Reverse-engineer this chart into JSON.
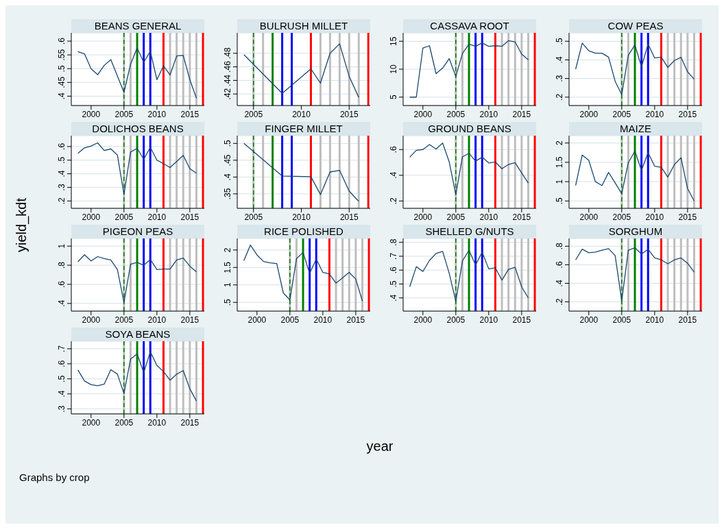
{
  "chart_data": [
    {
      "type": "line",
      "title": "BEANS GENERAL",
      "x": [
        1998,
        1999,
        2000,
        2001,
        2002,
        2003,
        2005,
        2006,
        2007,
        2008,
        2009,
        2010,
        2011,
        2012,
        2013,
        2014,
        2015,
        2016
      ],
      "values": [
        0.562,
        0.554,
        0.5,
        0.478,
        0.512,
        0.533,
        0.414,
        0.516,
        0.575,
        0.523,
        0.563,
        0.46,
        0.51,
        0.477,
        0.546,
        0.548,
        0.46,
        0.393
      ],
      "color": "#1a476f",
      "marker": "none",
      "xlim": [
        1997,
        2017.2
      ],
      "xticks": [
        2000,
        2005,
        2010,
        2015
      ],
      "ylim": [
        0.366,
        0.63
      ],
      "yticks": [
        {
          "value": 0.4,
          "label": ".4"
        },
        {
          "value": 0.45,
          "label": ".45"
        },
        {
          "value": 0.5,
          "label": ".5"
        },
        {
          "value": 0.55,
          "label": ".55"
        },
        {
          "value": 0.6,
          "label": ".6"
        }
      ],
      "grid": "y",
      "ref_lines": [
        {
          "axis": "x",
          "value": 2005,
          "color": "#008000",
          "line_style": "dashed"
        },
        {
          "axis": "x",
          "value": 2005,
          "color": "#bebebe"
        },
        {
          "axis": "x",
          "value": 2006,
          "color": "#bebebe"
        },
        {
          "axis": "x",
          "value": 2007,
          "color": "#008000"
        },
        {
          "axis": "x",
          "value": 2008,
          "color": "#0000ff"
        },
        {
          "axis": "x",
          "value": 2009,
          "color": "#0000ff"
        },
        {
          "axis": "x",
          "value": 2011,
          "color": "#ff0000"
        },
        {
          "axis": "x",
          "value": 2012,
          "color": "#bebebe"
        },
        {
          "axis": "x",
          "value": 2013,
          "color": "#bebebe"
        },
        {
          "axis": "x",
          "value": 2014,
          "color": "#bebebe"
        },
        {
          "axis": "x",
          "value": 2015,
          "color": "#bebebe"
        },
        {
          "axis": "x",
          "value": 2016,
          "color": "#bebebe"
        },
        {
          "axis": "x",
          "value": 2017,
          "color": "#ff0000"
        }
      ]
    },
    {
      "type": "line",
      "title": "BULRUSH MILLET",
      "x": [
        2004,
        2008,
        2011,
        2012,
        2013,
        2014,
        2015,
        2016
      ],
      "values": [
        0.478,
        0.421,
        0.457,
        0.436,
        0.48,
        0.494,
        0.446,
        0.415
      ],
      "color": "#1a476f",
      "marker": "none",
      "xlim": [
        2003.3,
        2017.2
      ],
      "xticks": [
        2005,
        2010,
        2015
      ],
      "ylim": [
        0.403,
        0.51
      ],
      "yticks": [
        {
          "value": 0.42,
          "label": ".42"
        },
        {
          "value": 0.44,
          "label": ".44"
        },
        {
          "value": 0.46,
          "label": ".46"
        },
        {
          "value": 0.48,
          "label": ".48"
        }
      ],
      "grid": "y",
      "ref_lines": [
        {
          "axis": "x",
          "value": 2005,
          "color": "#008000",
          "line_style": "dashed"
        },
        {
          "axis": "x",
          "value": 2005,
          "color": "#bebebe"
        },
        {
          "axis": "x",
          "value": 2006,
          "color": "#bebebe"
        },
        {
          "axis": "x",
          "value": 2007,
          "color": "#008000"
        },
        {
          "axis": "x",
          "value": 2008,
          "color": "#0000ff"
        },
        {
          "axis": "x",
          "value": 2009,
          "color": "#0000ff"
        },
        {
          "axis": "x",
          "value": 2011,
          "color": "#ff0000"
        },
        {
          "axis": "x",
          "value": 2012,
          "color": "#bebebe"
        },
        {
          "axis": "x",
          "value": 2013,
          "color": "#bebebe"
        },
        {
          "axis": "x",
          "value": 2014,
          "color": "#bebebe"
        },
        {
          "axis": "x",
          "value": 2015,
          "color": "#bebebe"
        },
        {
          "axis": "x",
          "value": 2016,
          "color": "#bebebe"
        },
        {
          "axis": "x",
          "value": 2017,
          "color": "#ff0000"
        }
      ]
    },
    {
      "type": "line",
      "title": "CASSAVA ROOT",
      "x": [
        1998,
        1999,
        2000,
        2001,
        2002,
        2003,
        2004,
        2005,
        2006,
        2007,
        2008,
        2009,
        2010,
        2011,
        2012,
        2013,
        2014,
        2015,
        2016
      ],
      "values": [
        5.0,
        5.0,
        13.8,
        14.2,
        9.2,
        10.2,
        11.9,
        8.7,
        12.8,
        14.5,
        14.1,
        14.7,
        14.1,
        14.2,
        14.1,
        15.1,
        14.9,
        12.7,
        11.7
      ],
      "color": "#1a476f",
      "marker": "none",
      "xlim": [
        1997,
        2017.2
      ],
      "xticks": [
        2000,
        2005,
        2010,
        2015
      ],
      "ylim": [
        3.5,
        16.5
      ],
      "yticks": [
        5,
        10,
        15
      ],
      "grid": "y",
      "ref_lines": [
        {
          "axis": "x",
          "value": 2005,
          "color": "#008000",
          "line_style": "dashed"
        },
        {
          "axis": "x",
          "value": 2005,
          "color": "#bebebe"
        },
        {
          "axis": "x",
          "value": 2006,
          "color": "#bebebe"
        },
        {
          "axis": "x",
          "value": 2007,
          "color": "#008000"
        },
        {
          "axis": "x",
          "value": 2008,
          "color": "#0000ff"
        },
        {
          "axis": "x",
          "value": 2009,
          "color": "#0000ff"
        },
        {
          "axis": "x",
          "value": 2011,
          "color": "#ff0000"
        },
        {
          "axis": "x",
          "value": 2012,
          "color": "#bebebe"
        },
        {
          "axis": "x",
          "value": 2013,
          "color": "#bebebe"
        },
        {
          "axis": "x",
          "value": 2014,
          "color": "#bebebe"
        },
        {
          "axis": "x",
          "value": 2015,
          "color": "#bebebe"
        },
        {
          "axis": "x",
          "value": 2016,
          "color": "#bebebe"
        },
        {
          "axis": "x",
          "value": 2017,
          "color": "#ff0000"
        }
      ]
    },
    {
      "type": "line",
      "title": "COW PEAS",
      "x": [
        1998,
        1999,
        2000,
        2001,
        2002,
        2003,
        2004,
        2005,
        2006,
        2007,
        2008,
        2009,
        2010,
        2011,
        2012,
        2013,
        2014,
        2015,
        2016
      ],
      "values": [
        0.35,
        0.49,
        0.449,
        0.436,
        0.436,
        0.415,
        0.285,
        0.214,
        0.425,
        0.48,
        0.363,
        0.485,
        0.41,
        0.415,
        0.36,
        0.397,
        0.414,
        0.336,
        0.296
      ],
      "color": "#1a476f",
      "marker": "none",
      "xlim": [
        1997,
        2017.2
      ],
      "xticks": [
        2000,
        2005,
        2010,
        2015
      ],
      "ylim": [
        0.155,
        0.545
      ],
      "yticks": [
        {
          "value": 0.2,
          "label": ".2"
        },
        {
          "value": 0.3,
          "label": ".3"
        },
        {
          "value": 0.4,
          "label": ".4"
        },
        {
          "value": 0.5,
          "label": ".5"
        }
      ],
      "grid": "y",
      "ref_lines": [
        {
          "axis": "x",
          "value": 2005,
          "color": "#008000",
          "line_style": "dashed"
        },
        {
          "axis": "x",
          "value": 2005,
          "color": "#bebebe"
        },
        {
          "axis": "x",
          "value": 2006,
          "color": "#bebebe"
        },
        {
          "axis": "x",
          "value": 2007,
          "color": "#008000"
        },
        {
          "axis": "x",
          "value": 2008,
          "color": "#0000ff"
        },
        {
          "axis": "x",
          "value": 2009,
          "color": "#0000ff"
        },
        {
          "axis": "x",
          "value": 2011,
          "color": "#ff0000"
        },
        {
          "axis": "x",
          "value": 2012,
          "color": "#bebebe"
        },
        {
          "axis": "x",
          "value": 2013,
          "color": "#bebebe"
        },
        {
          "axis": "x",
          "value": 2014,
          "color": "#bebebe"
        },
        {
          "axis": "x",
          "value": 2015,
          "color": "#bebebe"
        },
        {
          "axis": "x",
          "value": 2016,
          "color": "#bebebe"
        },
        {
          "axis": "x",
          "value": 2017,
          "color": "#ff0000"
        }
      ]
    },
    {
      "type": "line",
      "title": "DOLICHOS BEANS",
      "ylabel": "yield_kdt",
      "x": [
        1998,
        1999,
        2000,
        2001,
        2002,
        2003,
        2004,
        2005,
        2006,
        2007,
        2008,
        2009,
        2010,
        2011,
        2012,
        2013,
        2014,
        2015,
        2016
      ],
      "values": [
        0.55,
        0.59,
        0.604,
        0.627,
        0.571,
        0.583,
        0.538,
        0.248,
        0.56,
        0.587,
        0.506,
        0.594,
        0.5,
        0.475,
        0.446,
        0.49,
        0.535,
        0.437,
        0.404
      ],
      "color": "#1a476f",
      "marker": "none",
      "xlim": [
        1997,
        2017.2
      ],
      "xticks": [
        2000,
        2005,
        2010,
        2015
      ],
      "ylim": [
        0.146,
        0.68
      ],
      "yticks": [
        {
          "value": 0.2,
          "label": ".2"
        },
        {
          "value": 0.3,
          "label": ".3"
        },
        {
          "value": 0.4,
          "label": ".4"
        },
        {
          "value": 0.5,
          "label": ".5"
        },
        {
          "value": 0.6,
          "label": ".6"
        }
      ],
      "grid": "y",
      "ref_lines": [
        {
          "axis": "x",
          "value": 2005,
          "color": "#008000",
          "line_style": "dashed"
        },
        {
          "axis": "x",
          "value": 2005,
          "color": "#bebebe"
        },
        {
          "axis": "x",
          "value": 2006,
          "color": "#bebebe"
        },
        {
          "axis": "x",
          "value": 2007,
          "color": "#008000"
        },
        {
          "axis": "x",
          "value": 2008,
          "color": "#0000ff"
        },
        {
          "axis": "x",
          "value": 2009,
          "color": "#0000ff"
        },
        {
          "axis": "x",
          "value": 2011,
          "color": "#ff0000"
        },
        {
          "axis": "x",
          "value": 2012,
          "color": "#bebebe"
        },
        {
          "axis": "x",
          "value": 2013,
          "color": "#bebebe"
        },
        {
          "axis": "x",
          "value": 2014,
          "color": "#bebebe"
        },
        {
          "axis": "x",
          "value": 2015,
          "color": "#bebebe"
        },
        {
          "axis": "x",
          "value": 2016,
          "color": "#bebebe"
        },
        {
          "axis": "x",
          "value": 2017,
          "color": "#ff0000"
        }
      ]
    },
    {
      "type": "line",
      "title": "FINGER MILLET",
      "x": [
        2004,
        2008,
        2011,
        2012,
        2013,
        2014,
        2015,
        2016
      ],
      "values": [
        0.5,
        0.403,
        0.401,
        0.348,
        0.415,
        0.42,
        0.358,
        0.328
      ],
      "color": "#1a476f",
      "marker": "none",
      "xlim": [
        2003.3,
        2017.2
      ],
      "xticks": [
        2005,
        2010,
        2015
      ],
      "ylim": [
        0.307,
        0.523
      ],
      "yticks": [
        {
          "value": 0.35,
          "label": ".35"
        },
        {
          "value": 0.4,
          "label": ".4"
        },
        {
          "value": 0.45,
          "label": ".45"
        },
        {
          "value": 0.5,
          "label": ".5"
        }
      ],
      "grid": "y",
      "ref_lines": [
        {
          "axis": "x",
          "value": 2005,
          "color": "#008000",
          "line_style": "dashed"
        },
        {
          "axis": "x",
          "value": 2005,
          "color": "#bebebe"
        },
        {
          "axis": "x",
          "value": 2006,
          "color": "#bebebe"
        },
        {
          "axis": "x",
          "value": 2007,
          "color": "#008000"
        },
        {
          "axis": "x",
          "value": 2008,
          "color": "#0000ff"
        },
        {
          "axis": "x",
          "value": 2009,
          "color": "#0000ff"
        },
        {
          "axis": "x",
          "value": 2011,
          "color": "#ff0000"
        },
        {
          "axis": "x",
          "value": 2012,
          "color": "#bebebe"
        },
        {
          "axis": "x",
          "value": 2013,
          "color": "#bebebe"
        },
        {
          "axis": "x",
          "value": 2014,
          "color": "#bebebe"
        },
        {
          "axis": "x",
          "value": 2015,
          "color": "#bebebe"
        },
        {
          "axis": "x",
          "value": 2016,
          "color": "#bebebe"
        },
        {
          "axis": "x",
          "value": 2017,
          "color": "#ff0000"
        }
      ]
    },
    {
      "type": "line",
      "title": "GROUND BEANS",
      "x": [
        1998,
        1999,
        2000,
        2001,
        2002,
        2003,
        2004,
        2005,
        2006,
        2007,
        2008,
        2009,
        2010,
        2011,
        2012,
        2013,
        2014,
        2015,
        2016
      ],
      "values": [
        0.541,
        0.594,
        0.6,
        0.639,
        0.604,
        0.651,
        0.504,
        0.247,
        0.543,
        0.571,
        0.51,
        0.541,
        0.496,
        0.504,
        0.451,
        0.484,
        0.498,
        0.418,
        0.339
      ],
      "color": "#1a476f",
      "marker": "none",
      "xlim": [
        1997,
        2017.2
      ],
      "xticks": [
        2000,
        2005,
        2010,
        2015
      ],
      "ylim": [
        0.143,
        0.708
      ],
      "yticks": [
        {
          "value": 0.2,
          "label": ".2"
        },
        {
          "value": 0.4,
          "label": ".4"
        },
        {
          "value": 0.6,
          "label": ".6"
        }
      ],
      "grid": "y",
      "ref_lines": [
        {
          "axis": "x",
          "value": 2005,
          "color": "#008000",
          "line_style": "dashed"
        },
        {
          "axis": "x",
          "value": 2005,
          "color": "#bebebe"
        },
        {
          "axis": "x",
          "value": 2006,
          "color": "#bebebe"
        },
        {
          "axis": "x",
          "value": 2007,
          "color": "#008000"
        },
        {
          "axis": "x",
          "value": 2008,
          "color": "#0000ff"
        },
        {
          "axis": "x",
          "value": 2009,
          "color": "#0000ff"
        },
        {
          "axis": "x",
          "value": 2011,
          "color": "#ff0000"
        },
        {
          "axis": "x",
          "value": 2012,
          "color": "#bebebe"
        },
        {
          "axis": "x",
          "value": 2013,
          "color": "#bebebe"
        },
        {
          "axis": "x",
          "value": 2014,
          "color": "#bebebe"
        },
        {
          "axis": "x",
          "value": 2015,
          "color": "#bebebe"
        },
        {
          "axis": "x",
          "value": 2016,
          "color": "#bebebe"
        },
        {
          "axis": "x",
          "value": 2017,
          "color": "#ff0000"
        }
      ]
    },
    {
      "type": "line",
      "title": "MAIZE",
      "x": [
        1998,
        1999,
        2000,
        2001,
        2002,
        2003,
        2004,
        2005,
        2006,
        2007,
        2008,
        2009,
        2010,
        2011,
        2012,
        2013,
        2014,
        2015,
        2016
      ],
      "values": [
        0.9,
        1.69,
        1.55,
        1.0,
        0.9,
        1.24,
        0.97,
        0.69,
        1.49,
        1.79,
        1.29,
        1.75,
        1.4,
        1.37,
        1.12,
        1.44,
        1.62,
        0.82,
        0.5
      ],
      "color": "#1a476f",
      "marker": "none",
      "xlim": [
        1997,
        2017.2
      ],
      "xticks": [
        2000,
        2005,
        2010,
        2015
      ],
      "ylim": [
        0.31,
        2.19
      ],
      "yticks": [
        {
          "value": 0.5,
          "label": ".5"
        },
        1,
        1.5,
        2
      ],
      "grid": "y",
      "ref_lines": [
        {
          "axis": "x",
          "value": 2005,
          "color": "#008000",
          "line_style": "dashed"
        },
        {
          "axis": "x",
          "value": 2005,
          "color": "#bebebe"
        },
        {
          "axis": "x",
          "value": 2006,
          "color": "#bebebe"
        },
        {
          "axis": "x",
          "value": 2007,
          "color": "#008000"
        },
        {
          "axis": "x",
          "value": 2008,
          "color": "#0000ff"
        },
        {
          "axis": "x",
          "value": 2009,
          "color": "#0000ff"
        },
        {
          "axis": "x",
          "value": 2011,
          "color": "#ff0000"
        },
        {
          "axis": "x",
          "value": 2012,
          "color": "#bebebe"
        },
        {
          "axis": "x",
          "value": 2013,
          "color": "#bebebe"
        },
        {
          "axis": "x",
          "value": 2014,
          "color": "#bebebe"
        },
        {
          "axis": "x",
          "value": 2015,
          "color": "#bebebe"
        },
        {
          "axis": "x",
          "value": 2016,
          "color": "#bebebe"
        },
        {
          "axis": "x",
          "value": 2017,
          "color": "#ff0000"
        }
      ]
    },
    {
      "type": "line",
      "title": "PIGEON PEAS",
      "x": [
        1998,
        1999,
        2000,
        2001,
        2002,
        2003,
        2004,
        2005,
        2006,
        2007,
        2008,
        2009,
        2010,
        2011,
        2012,
        2013,
        2014,
        2015,
        2016
      ],
      "values": [
        0.836,
        0.91,
        0.845,
        0.89,
        0.87,
        0.855,
        0.755,
        0.41,
        0.81,
        0.83,
        0.8,
        0.86,
        0.755,
        0.76,
        0.76,
        0.855,
        0.875,
        0.79,
        0.73
      ],
      "color": "#1a476f",
      "marker": "none",
      "xlim": [
        1997,
        2017.2
      ],
      "xticks": [
        2000,
        2005,
        2010,
        2015
      ],
      "ylim": [
        0.32,
        1.08
      ],
      "yticks": [
        {
          "value": 0.4,
          "label": ".4"
        },
        {
          "value": 0.6,
          "label": ".6"
        },
        {
          "value": 0.8,
          "label": ".8"
        },
        1
      ],
      "grid": "y",
      "ref_lines": [
        {
          "axis": "x",
          "value": 2005,
          "color": "#008000",
          "line_style": "dashed"
        },
        {
          "axis": "x",
          "value": 2005,
          "color": "#bebebe"
        },
        {
          "axis": "x",
          "value": 2006,
          "color": "#bebebe"
        },
        {
          "axis": "x",
          "value": 2007,
          "color": "#008000"
        },
        {
          "axis": "x",
          "value": 2008,
          "color": "#0000ff"
        },
        {
          "axis": "x",
          "value": 2009,
          "color": "#0000ff"
        },
        {
          "axis": "x",
          "value": 2011,
          "color": "#ff0000"
        },
        {
          "axis": "x",
          "value": 2012,
          "color": "#bebebe"
        },
        {
          "axis": "x",
          "value": 2013,
          "color": "#bebebe"
        },
        {
          "axis": "x",
          "value": 2014,
          "color": "#bebebe"
        },
        {
          "axis": "x",
          "value": 2015,
          "color": "#bebebe"
        },
        {
          "axis": "x",
          "value": 2016,
          "color": "#bebebe"
        },
        {
          "axis": "x",
          "value": 2017,
          "color": "#ff0000"
        }
      ]
    },
    {
      "type": "line",
      "title": "RICE POLISHED",
      "xlabel": "year",
      "x": [
        1998,
        1999,
        2000,
        2001,
        2002,
        2003,
        2004,
        2005,
        2006,
        2007,
        2008,
        2009,
        2010,
        2011,
        2012,
        2013,
        2014,
        2015,
        2016
      ],
      "values": [
        1.69,
        2.14,
        1.86,
        1.67,
        1.63,
        1.61,
        0.77,
        0.57,
        1.75,
        1.93,
        1.33,
        1.74,
        1.36,
        1.31,
        1.05,
        1.2,
        1.36,
        1.17,
        0.54
      ],
      "color": "#1a476f",
      "marker": "none",
      "xlim": [
        1997,
        2017.2
      ],
      "xticks": [
        2000,
        2005,
        2010,
        2015
      ],
      "ylim": [
        0.25,
        2.33
      ],
      "yticks": [
        {
          "value": 0.5,
          "label": ".5"
        },
        1,
        1.5,
        2
      ],
      "grid": "y",
      "ref_lines": [
        {
          "axis": "x",
          "value": 2005,
          "color": "#008000",
          "line_style": "dashed"
        },
        {
          "axis": "x",
          "value": 2005,
          "color": "#bebebe"
        },
        {
          "axis": "x",
          "value": 2006,
          "color": "#bebebe"
        },
        {
          "axis": "x",
          "value": 2007,
          "color": "#008000"
        },
        {
          "axis": "x",
          "value": 2008,
          "color": "#0000ff"
        },
        {
          "axis": "x",
          "value": 2009,
          "color": "#0000ff"
        },
        {
          "axis": "x",
          "value": 2011,
          "color": "#ff0000"
        },
        {
          "axis": "x",
          "value": 2012,
          "color": "#bebebe"
        },
        {
          "axis": "x",
          "value": 2013,
          "color": "#bebebe"
        },
        {
          "axis": "x",
          "value": 2014,
          "color": "#bebebe"
        },
        {
          "axis": "x",
          "value": 2015,
          "color": "#bebebe"
        },
        {
          "axis": "x",
          "value": 2016,
          "color": "#bebebe"
        },
        {
          "axis": "x",
          "value": 2017,
          "color": "#ff0000"
        }
      ]
    },
    {
      "type": "line",
      "title": "SHELLED G/NUTS",
      "x": [
        1998,
        1999,
        2000,
        2001,
        2002,
        2003,
        2004,
        2005,
        2006,
        2007,
        2008,
        2009,
        2010,
        2011,
        2012,
        2013,
        2014,
        2015,
        2016
      ],
      "values": [
        0.48,
        0.625,
        0.59,
        0.67,
        0.72,
        0.735,
        0.577,
        0.375,
        0.665,
        0.743,
        0.637,
        0.729,
        0.609,
        0.616,
        0.528,
        0.605,
        0.62,
        0.48,
        0.4
      ],
      "color": "#1a476f",
      "marker": "none",
      "xlim": [
        1997,
        2017.2
      ],
      "xticks": [
        2000,
        2005,
        2010,
        2015
      ],
      "ylim": [
        0.305,
        0.828
      ],
      "yticks": [
        {
          "value": 0.4,
          "label": ".4"
        },
        {
          "value": 0.5,
          "label": ".5"
        },
        {
          "value": 0.6,
          "label": ".6"
        },
        {
          "value": 0.7,
          "label": ".7"
        },
        {
          "value": 0.8,
          "label": ".8"
        }
      ],
      "grid": "y",
      "ref_lines": [
        {
          "axis": "x",
          "value": 2005,
          "color": "#008000",
          "line_style": "dashed"
        },
        {
          "axis": "x",
          "value": 2005,
          "color": "#bebebe"
        },
        {
          "axis": "x",
          "value": 2006,
          "color": "#bebebe"
        },
        {
          "axis": "x",
          "value": 2007,
          "color": "#008000"
        },
        {
          "axis": "x",
          "value": 2008,
          "color": "#0000ff"
        },
        {
          "axis": "x",
          "value": 2009,
          "color": "#0000ff"
        },
        {
          "axis": "x",
          "value": 2011,
          "color": "#ff0000"
        },
        {
          "axis": "x",
          "value": 2012,
          "color": "#bebebe"
        },
        {
          "axis": "x",
          "value": 2013,
          "color": "#bebebe"
        },
        {
          "axis": "x",
          "value": 2014,
          "color": "#bebebe"
        },
        {
          "axis": "x",
          "value": 2015,
          "color": "#bebebe"
        },
        {
          "axis": "x",
          "value": 2016,
          "color": "#bebebe"
        },
        {
          "axis": "x",
          "value": 2017,
          "color": "#ff0000"
        }
      ]
    },
    {
      "type": "line",
      "title": "SORGHUM",
      "x": [
        1998,
        1999,
        2000,
        2001,
        2002,
        2003,
        2004,
        2005,
        2006,
        2007,
        2008,
        2009,
        2010,
        2011,
        2012,
        2013,
        2014,
        2015,
        2016
      ],
      "values": [
        0.653,
        0.768,
        0.73,
        0.737,
        0.758,
        0.774,
        0.7,
        0.21,
        0.758,
        0.784,
        0.716,
        0.768,
        0.674,
        0.653,
        0.61,
        0.653,
        0.674,
        0.616,
        0.521
      ],
      "color": "#1a476f",
      "marker": "none",
      "xlim": [
        1997,
        2017.2
      ],
      "xticks": [
        2000,
        2005,
        2010,
        2015
      ],
      "ylim": [
        0.1,
        0.884
      ],
      "yticks": [
        {
          "value": 0.2,
          "label": ".2"
        },
        {
          "value": 0.4,
          "label": ".4"
        },
        {
          "value": 0.6,
          "label": ".6"
        },
        {
          "value": 0.8,
          "label": ".8"
        }
      ],
      "grid": "y",
      "ref_lines": [
        {
          "axis": "x",
          "value": 2005,
          "color": "#008000",
          "line_style": "dashed"
        },
        {
          "axis": "x",
          "value": 2005,
          "color": "#bebebe"
        },
        {
          "axis": "x",
          "value": 2006,
          "color": "#bebebe"
        },
        {
          "axis": "x",
          "value": 2007,
          "color": "#008000"
        },
        {
          "axis": "x",
          "value": 2008,
          "color": "#0000ff"
        },
        {
          "axis": "x",
          "value": 2009,
          "color": "#0000ff"
        },
        {
          "axis": "x",
          "value": 2011,
          "color": "#ff0000"
        },
        {
          "axis": "x",
          "value": 2012,
          "color": "#bebebe"
        },
        {
          "axis": "x",
          "value": 2013,
          "color": "#bebebe"
        },
        {
          "axis": "x",
          "value": 2014,
          "color": "#bebebe"
        },
        {
          "axis": "x",
          "value": 2015,
          "color": "#bebebe"
        },
        {
          "axis": "x",
          "value": 2016,
          "color": "#bebebe"
        },
        {
          "axis": "x",
          "value": 2017,
          "color": "#ff0000"
        }
      ]
    },
    {
      "type": "line",
      "title": "SOYA BEANS",
      "annotations": [
        "Graphs by crop"
      ],
      "x": [
        1998,
        1999,
        2000,
        2001,
        2002,
        2003,
        2004,
        2005,
        2006,
        2007,
        2008,
        2009,
        2010,
        2011,
        2012,
        2013,
        2014,
        2015,
        2016
      ],
      "values": [
        0.559,
        0.486,
        0.461,
        0.454,
        0.465,
        0.561,
        0.532,
        0.402,
        0.631,
        0.666,
        0.541,
        0.68,
        0.589,
        0.549,
        0.491,
        0.531,
        0.555,
        0.434,
        0.353
      ],
      "color": "#1a476f",
      "marker": "none",
      "xlim": [
        1997,
        2017.2
      ],
      "xticks": [
        2000,
        2005,
        2010,
        2015
      ],
      "ylim": [
        0.267,
        0.75
      ],
      "yticks": [
        {
          "value": 0.3,
          "label": ".3"
        },
        {
          "value": 0.4,
          "label": ".4"
        },
        {
          "value": 0.5,
          "label": ".5"
        },
        {
          "value": 0.6,
          "label": ".6"
        },
        {
          "value": 0.7,
          "label": ".7"
        }
      ],
      "grid": "y",
      "ref_lines": [
        {
          "axis": "x",
          "value": 2005,
          "color": "#008000",
          "line_style": "dashed"
        },
        {
          "axis": "x",
          "value": 2005,
          "color": "#bebebe"
        },
        {
          "axis": "x",
          "value": 2006,
          "color": "#bebebe"
        },
        {
          "axis": "x",
          "value": 2007,
          "color": "#008000"
        },
        {
          "axis": "x",
          "value": 2008,
          "color": "#0000ff"
        },
        {
          "axis": "x",
          "value": 2009,
          "color": "#0000ff"
        },
        {
          "axis": "x",
          "value": 2011,
          "color": "#ff0000"
        },
        {
          "axis": "x",
          "value": 2012,
          "color": "#bebebe"
        },
        {
          "axis": "x",
          "value": 2013,
          "color": "#bebebe"
        },
        {
          "axis": "x",
          "value": 2014,
          "color": "#bebebe"
        },
        {
          "axis": "x",
          "value": 2015,
          "color": "#bebebe"
        },
        {
          "axis": "x",
          "value": 2016,
          "color": "#bebebe"
        },
        {
          "axis": "x",
          "value": 2017,
          "color": "#ff0000"
        }
      ]
    }
  ]
}
